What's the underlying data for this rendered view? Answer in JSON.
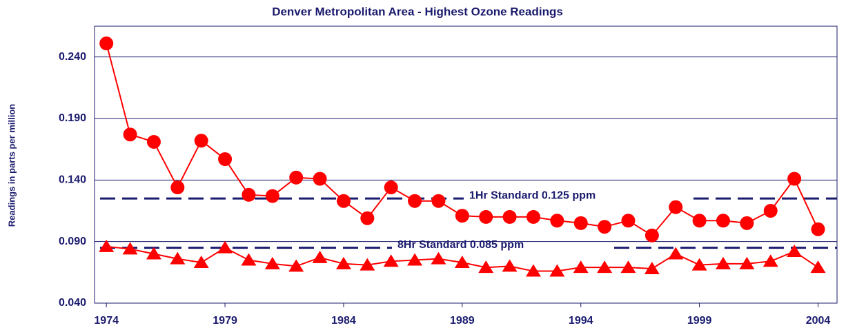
{
  "chart_data": {
    "type": "line",
    "title": "Denver Metropolitan Area - Highest Ozone Readings",
    "y_label": "Readings in parts per million",
    "x": [
      1974,
      1975,
      1976,
      1977,
      1978,
      1979,
      1980,
      1981,
      1982,
      1983,
      1984,
      1985,
      1986,
      1987,
      1988,
      1989,
      1990,
      1991,
      1992,
      1993,
      1994,
      1995,
      1996,
      1997,
      1998,
      1999,
      2000,
      2001,
      2002,
      2003,
      2004
    ],
    "series": [
      {
        "name": "1Hr",
        "color": "#ff0000",
        "marker": "circle",
        "values": [
          0.251,
          0.177,
          0.171,
          0.134,
          0.172,
          0.157,
          0.128,
          0.127,
          0.142,
          0.141,
          0.123,
          0.109,
          0.134,
          0.123,
          0.123,
          0.111,
          0.11,
          0.11,
          0.11,
          0.107,
          0.105,
          0.102,
          0.107,
          0.095,
          0.118,
          0.107,
          0.107,
          0.105,
          0.115,
          0.141,
          0.1
        ]
      },
      {
        "name": "8Hr",
        "color": "#ff0000",
        "marker": "triangle",
        "values": [
          0.086,
          0.084,
          0.08,
          0.076,
          0.073,
          0.085,
          0.075,
          0.072,
          0.07,
          0.077,
          0.072,
          0.071,
          0.074,
          0.075,
          0.076,
          0.073,
          0.069,
          0.07,
          0.066,
          0.066,
          0.069,
          0.069,
          0.069,
          0.068,
          0.08,
          0.071,
          0.072,
          0.072,
          0.074,
          0.082,
          0.069
        ]
      }
    ],
    "reference_lines": [
      {
        "value": 0.125,
        "label": "1Hr Standard 0.125 ppm",
        "color": "#1a1a6e"
      },
      {
        "value": 0.085,
        "label": "8Hr Standard 0.085 ppm",
        "color": "#1a1a6e"
      }
    ],
    "xlim": [
      1973.5,
      2004.8
    ],
    "xticks": [
      1974,
      1979,
      1984,
      1989,
      1994,
      1999,
      2004
    ],
    "ylim": [
      0.04,
      0.265
    ],
    "yticks": [
      {
        "value": 0.04,
        "label": "0.040"
      },
      {
        "value": 0.09,
        "label": "0.090"
      },
      {
        "value": 0.14,
        "label": "0.140"
      },
      {
        "value": 0.19,
        "label": "0.190"
      },
      {
        "value": 0.24,
        "label": "0.240"
      }
    ],
    "grid": true
  }
}
